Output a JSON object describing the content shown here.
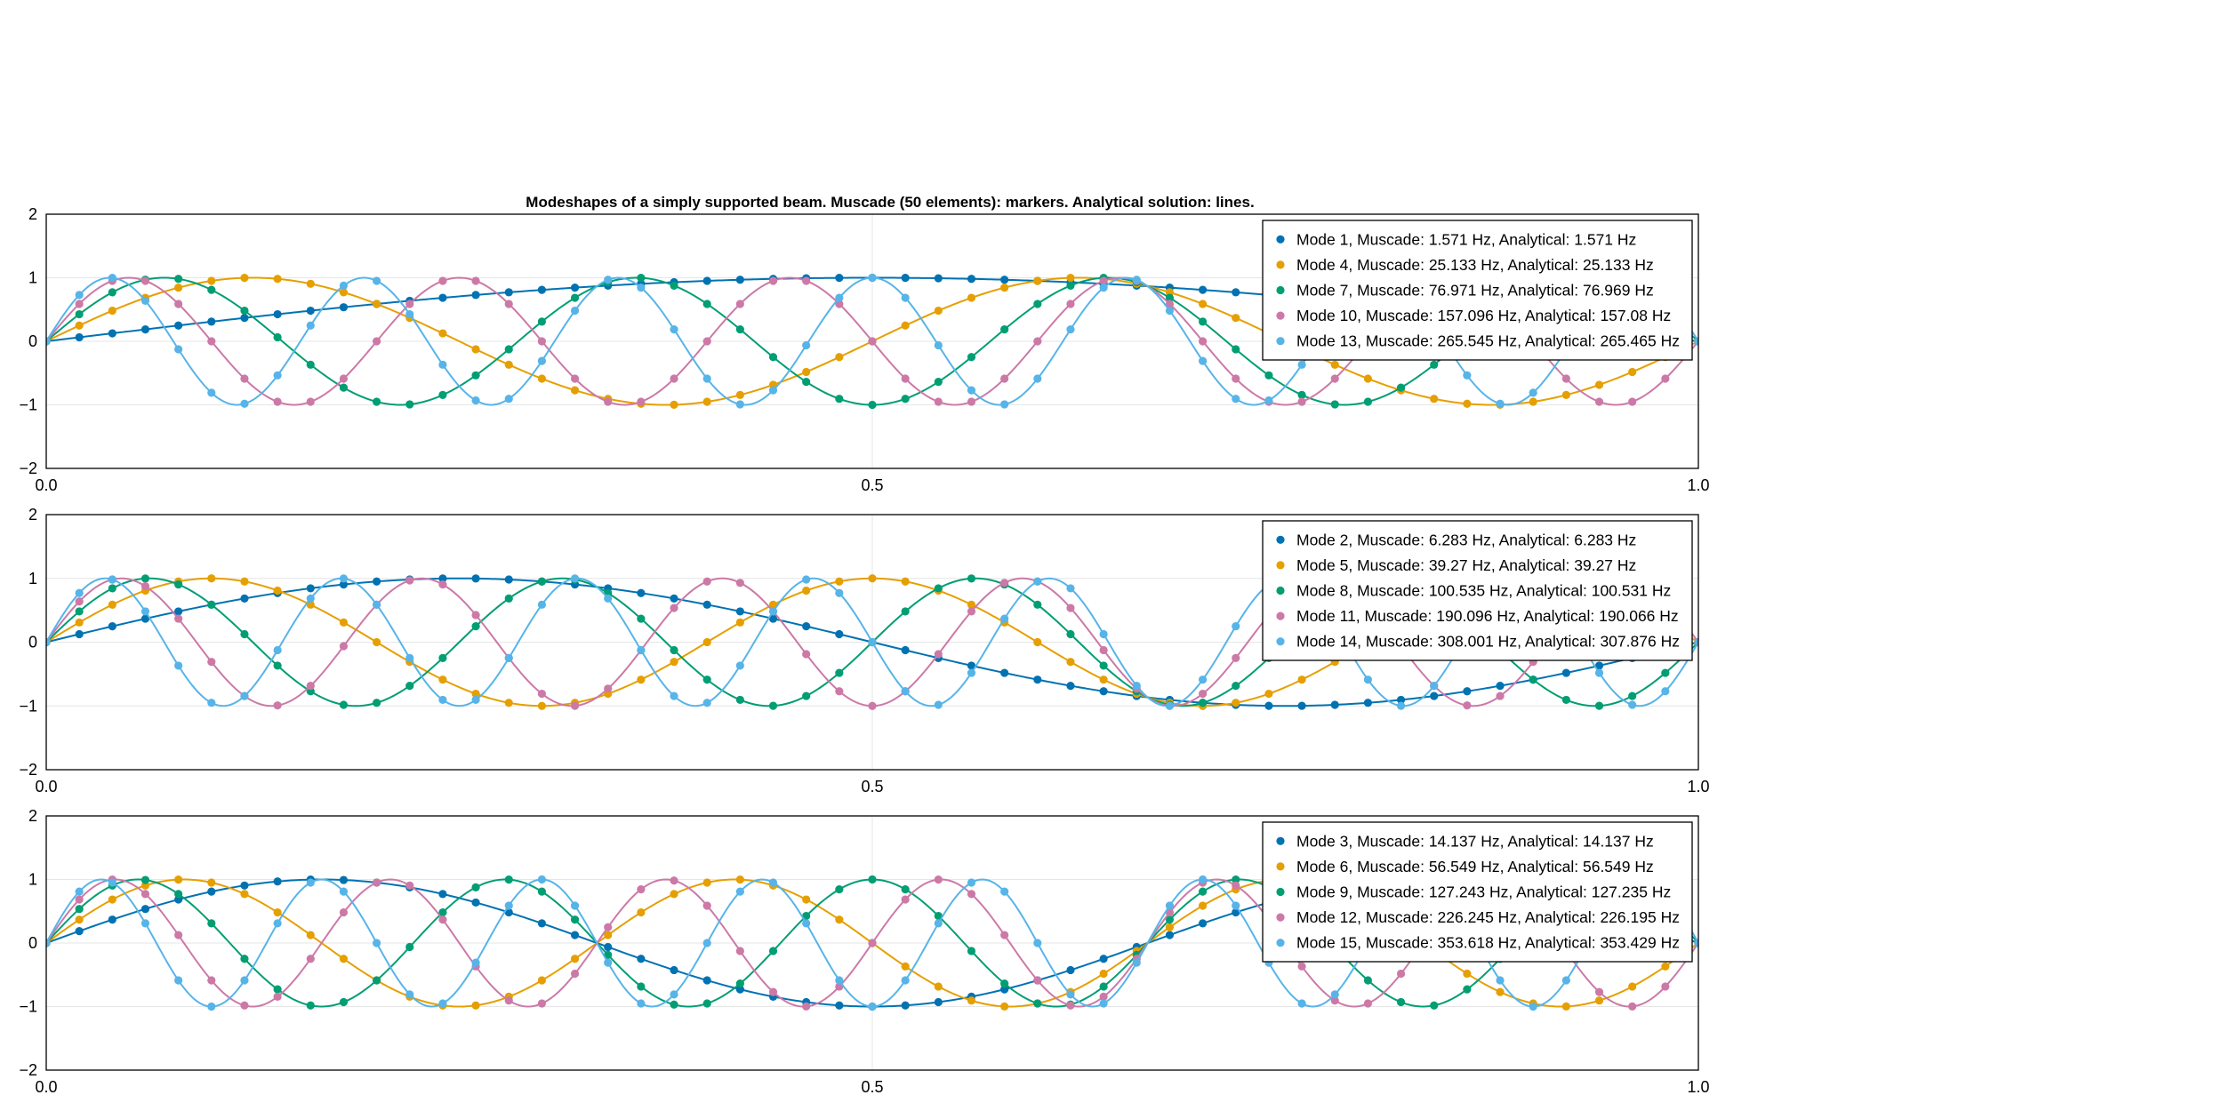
{
  "chart_data": [
    {
      "type": "line",
      "title": "Modeshapes of a simply supported beam. Muscade (50 elements): markers. Analytical solution: lines.",
      "xlim": [
        0.0,
        1.0
      ],
      "ylim": [
        -2,
        2
      ],
      "x_ticks": [
        "0.0",
        "0.5",
        "1.0"
      ],
      "y_ticks": [
        "−2",
        "−1",
        "0",
        "1",
        "2"
      ],
      "grid": true,
      "legend_position": "top-right",
      "marker_count": 51,
      "series": [
        {
          "name": "Mode 1, Muscade: 1.571 Hz, Analytical: 1.571 Hz",
          "mode": 1,
          "color": "#0072b2"
        },
        {
          "name": "Mode 4, Muscade: 25.133 Hz, Analytical: 25.133 Hz",
          "mode": 4,
          "color": "#e69f00"
        },
        {
          "name": "Mode 7, Muscade: 76.971 Hz, Analytical: 76.969 Hz",
          "mode": 7,
          "color": "#009e73"
        },
        {
          "name": "Mode 10, Muscade: 157.096 Hz, Analytical: 157.08 Hz",
          "mode": 10,
          "color": "#cc79a7"
        },
        {
          "name": "Mode 13, Muscade: 265.545 Hz, Analytical: 265.465 Hz",
          "mode": 13,
          "color": "#56b4e9"
        }
      ]
    },
    {
      "type": "line",
      "title": "",
      "xlim": [
        0.0,
        1.0
      ],
      "ylim": [
        -2,
        2
      ],
      "x_ticks": [
        "0.0",
        "0.5",
        "1.0"
      ],
      "y_ticks": [
        "−2",
        "−1",
        "0",
        "1",
        "2"
      ],
      "grid": true,
      "legend_position": "top-right",
      "marker_count": 51,
      "series": [
        {
          "name": "Mode 2, Muscade: 6.283 Hz, Analytical: 6.283 Hz",
          "mode": 2,
          "color": "#0072b2"
        },
        {
          "name": "Mode 5, Muscade: 39.27 Hz, Analytical: 39.27 Hz",
          "mode": 5,
          "color": "#e69f00"
        },
        {
          "name": "Mode 8, Muscade: 100.535 Hz, Analytical: 100.531 Hz",
          "mode": 8,
          "color": "#009e73"
        },
        {
          "name": "Mode 11, Muscade: 190.096 Hz, Analytical: 190.066 Hz",
          "mode": 11,
          "color": "#cc79a7"
        },
        {
          "name": "Mode 14, Muscade: 308.001 Hz, Analytical: 307.876 Hz",
          "mode": 14,
          "color": "#56b4e9"
        }
      ]
    },
    {
      "type": "line",
      "title": "",
      "xlim": [
        0.0,
        1.0
      ],
      "ylim": [
        -2,
        2
      ],
      "x_ticks": [
        "0.0",
        "0.5",
        "1.0"
      ],
      "y_ticks": [
        "−2",
        "−1",
        "0",
        "1",
        "2"
      ],
      "grid": true,
      "legend_position": "top-right",
      "marker_count": 51,
      "series": [
        {
          "name": "Mode 3, Muscade: 14.137 Hz, Analytical: 14.137 Hz",
          "mode": 3,
          "color": "#0072b2"
        },
        {
          "name": "Mode 6, Muscade: 56.549 Hz, Analytical: 56.549 Hz",
          "mode": 6,
          "color": "#e69f00"
        },
        {
          "name": "Mode 9, Muscade: 127.243 Hz, Analytical: 127.235 Hz",
          "mode": 9,
          "color": "#009e73"
        },
        {
          "name": "Mode 12, Muscade: 226.245 Hz, Analytical: 226.195 Hz",
          "mode": 12,
          "color": "#cc79a7"
        },
        {
          "name": "Mode 15, Muscade: 353.618 Hz, Analytical: 353.429 Hz",
          "mode": 15,
          "color": "#56b4e9"
        }
      ]
    }
  ]
}
